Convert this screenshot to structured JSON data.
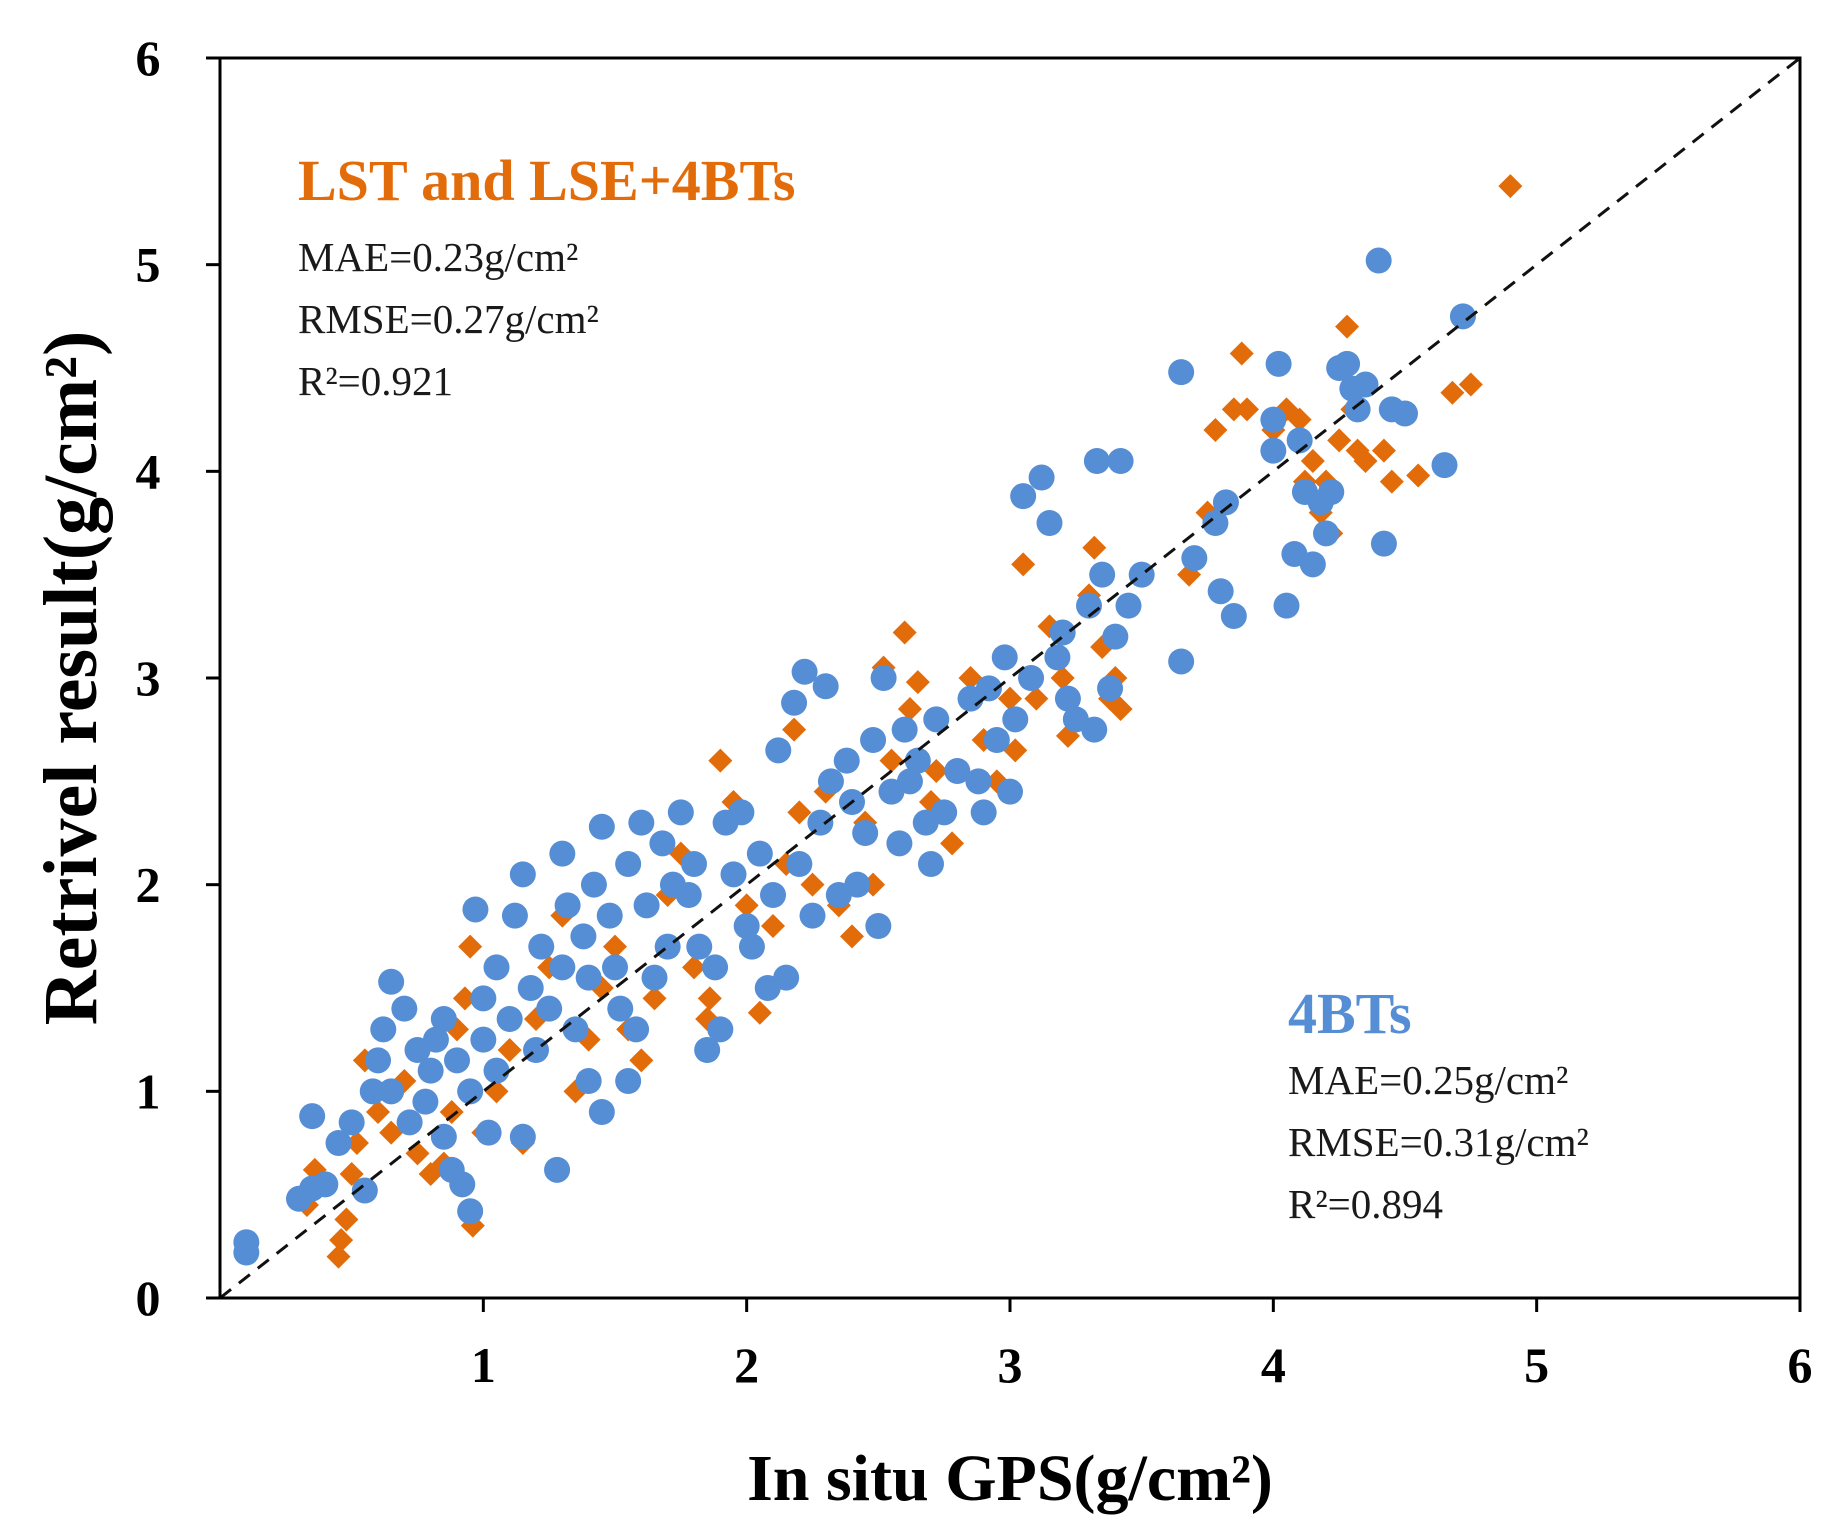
{
  "chart_data": {
    "type": "scatter",
    "xlabel": "In situ GPS(g/cm²)",
    "ylabel": "Retrivel result(g/cm²)",
    "xlim": [
      0,
      6
    ],
    "ylim": [
      0,
      6
    ],
    "xticks": [
      "1",
      "2",
      "3",
      "4",
      "5",
      "6"
    ],
    "yticks": [
      "0",
      "1",
      "2",
      "3",
      "4",
      "5",
      "6"
    ],
    "reference_line": "1:1",
    "colors": {
      "series_a": "#e36c0a",
      "series_b": "#558ed5"
    },
    "series": [
      {
        "name": "LST and LSE+4BTs",
        "marker": "diamond",
        "color": "#e36c0a",
        "stats": {
          "mae": "MAE=0.23g/cm²",
          "rmse": "RMSE=0.27g/cm²",
          "r2": "R²=0.921"
        },
        "points": [
          [
            0.1,
            0.27
          ],
          [
            0.1,
            0.22
          ],
          [
            0.33,
            0.45
          ],
          [
            0.36,
            0.62
          ],
          [
            0.45,
            0.2
          ],
          [
            0.46,
            0.28
          ],
          [
            0.48,
            0.38
          ],
          [
            0.5,
            0.6
          ],
          [
            0.52,
            0.75
          ],
          [
            0.55,
            1.15
          ],
          [
            0.6,
            0.9
          ],
          [
            0.65,
            0.8
          ],
          [
            0.7,
            1.05
          ],
          [
            0.75,
            0.7
          ],
          [
            0.8,
            0.6
          ],
          [
            0.85,
            0.65
          ],
          [
            0.88,
            0.9
          ],
          [
            0.9,
            1.3
          ],
          [
            0.93,
            1.45
          ],
          [
            0.95,
            1.7
          ],
          [
            0.96,
            0.35
          ],
          [
            1.0,
            0.8
          ],
          [
            1.05,
            1.0
          ],
          [
            1.1,
            1.2
          ],
          [
            1.15,
            0.75
          ],
          [
            1.2,
            1.35
          ],
          [
            1.25,
            1.6
          ],
          [
            1.3,
            1.85
          ],
          [
            1.35,
            1.0
          ],
          [
            1.4,
            1.25
          ],
          [
            1.45,
            1.5
          ],
          [
            1.5,
            1.7
          ],
          [
            1.55,
            1.3
          ],
          [
            1.6,
            1.15
          ],
          [
            1.65,
            1.45
          ],
          [
            1.7,
            1.95
          ],
          [
            1.75,
            2.15
          ],
          [
            1.8,
            1.6
          ],
          [
            1.85,
            1.35
          ],
          [
            1.86,
            1.45
          ],
          [
            1.9,
            2.6
          ],
          [
            1.95,
            2.4
          ],
          [
            2.0,
            1.9
          ],
          [
            2.05,
            1.38
          ],
          [
            2.1,
            1.8
          ],
          [
            2.15,
            2.1
          ],
          [
            2.18,
            2.75
          ],
          [
            2.2,
            2.35
          ],
          [
            2.25,
            2.0
          ],
          [
            2.3,
            2.45
          ],
          [
            2.35,
            1.9
          ],
          [
            2.4,
            1.75
          ],
          [
            2.45,
            2.3
          ],
          [
            2.48,
            2.0
          ],
          [
            2.52,
            3.05
          ],
          [
            2.55,
            2.6
          ],
          [
            2.6,
            3.22
          ],
          [
            2.62,
            2.85
          ],
          [
            2.65,
            2.98
          ],
          [
            2.7,
            2.4
          ],
          [
            2.72,
            2.55
          ],
          [
            2.78,
            2.2
          ],
          [
            2.85,
            3.0
          ],
          [
            2.9,
            2.7
          ],
          [
            2.95,
            2.5
          ],
          [
            3.0,
            2.9
          ],
          [
            3.02,
            2.65
          ],
          [
            3.05,
            3.55
          ],
          [
            3.1,
            2.9
          ],
          [
            3.15,
            3.25
          ],
          [
            3.2,
            3.0
          ],
          [
            3.22,
            2.72
          ],
          [
            3.3,
            3.4
          ],
          [
            3.32,
            3.63
          ],
          [
            3.35,
            3.15
          ],
          [
            3.38,
            2.9
          ],
          [
            3.4,
            3.0
          ],
          [
            3.42,
            2.85
          ],
          [
            3.68,
            3.5
          ],
          [
            3.75,
            3.8
          ],
          [
            3.78,
            4.2
          ],
          [
            3.85,
            4.3
          ],
          [
            3.88,
            4.57
          ],
          [
            3.9,
            4.3
          ],
          [
            4.0,
            4.2
          ],
          [
            4.05,
            4.3
          ],
          [
            4.1,
            4.25
          ],
          [
            4.12,
            3.95
          ],
          [
            4.15,
            4.05
          ],
          [
            4.18,
            3.8
          ],
          [
            4.2,
            3.95
          ],
          [
            4.22,
            3.7
          ],
          [
            4.25,
            4.15
          ],
          [
            4.28,
            4.7
          ],
          [
            4.3,
            4.3
          ],
          [
            4.32,
            4.1
          ],
          [
            4.35,
            4.05
          ],
          [
            4.42,
            4.1
          ],
          [
            4.45,
            3.95
          ],
          [
            4.55,
            3.98
          ],
          [
            4.68,
            4.38
          ],
          [
            4.75,
            4.42
          ],
          [
            4.9,
            5.38
          ]
        ]
      },
      {
        "name": "4BTs",
        "marker": "circle",
        "color": "#558ed5",
        "stats": {
          "mae": "MAE=0.25g/cm²",
          "rmse": "RMSE=0.31g/cm²",
          "r2": "R²=0.894"
        },
        "points": [
          [
            0.1,
            0.22
          ],
          [
            0.1,
            0.27
          ],
          [
            0.3,
            0.48
          ],
          [
            0.35,
            0.53
          ],
          [
            0.35,
            0.88
          ],
          [
            0.4,
            0.55
          ],
          [
            0.45,
            0.75
          ],
          [
            0.5,
            0.85
          ],
          [
            0.55,
            0.52
          ],
          [
            0.58,
            1.0
          ],
          [
            0.6,
            1.15
          ],
          [
            0.62,
            1.3
          ],
          [
            0.65,
            1.0
          ],
          [
            0.65,
            1.53
          ],
          [
            0.7,
            1.4
          ],
          [
            0.72,
            0.85
          ],
          [
            0.75,
            1.2
          ],
          [
            0.78,
            0.95
          ],
          [
            0.8,
            1.1
          ],
          [
            0.82,
            1.25
          ],
          [
            0.85,
            1.35
          ],
          [
            0.85,
            0.78
          ],
          [
            0.88,
            0.62
          ],
          [
            0.9,
            1.15
          ],
          [
            0.92,
            0.55
          ],
          [
            0.95,
            0.42
          ],
          [
            0.95,
            1.0
          ],
          [
            0.97,
            1.88
          ],
          [
            1.0,
            1.25
          ],
          [
            1.0,
            1.45
          ],
          [
            1.02,
            0.8
          ],
          [
            1.05,
            1.1
          ],
          [
            1.05,
            1.6
          ],
          [
            1.1,
            1.35
          ],
          [
            1.12,
            1.85
          ],
          [
            1.15,
            2.05
          ],
          [
            1.15,
            0.78
          ],
          [
            1.18,
            1.5
          ],
          [
            1.2,
            1.2
          ],
          [
            1.22,
            1.7
          ],
          [
            1.25,
            1.4
          ],
          [
            1.28,
            0.62
          ],
          [
            1.3,
            1.6
          ],
          [
            1.3,
            2.15
          ],
          [
            1.32,
            1.9
          ],
          [
            1.35,
            1.3
          ],
          [
            1.38,
            1.75
          ],
          [
            1.4,
            1.05
          ],
          [
            1.4,
            1.55
          ],
          [
            1.42,
            2.0
          ],
          [
            1.45,
            0.9
          ],
          [
            1.45,
            2.28
          ],
          [
            1.48,
            1.85
          ],
          [
            1.5,
            1.6
          ],
          [
            1.52,
            1.4
          ],
          [
            1.55,
            2.1
          ],
          [
            1.55,
            1.05
          ],
          [
            1.58,
            1.3
          ],
          [
            1.6,
            2.3
          ],
          [
            1.62,
            1.9
          ],
          [
            1.65,
            1.55
          ],
          [
            1.68,
            2.2
          ],
          [
            1.7,
            1.7
          ],
          [
            1.72,
            2.0
          ],
          [
            1.75,
            2.35
          ],
          [
            1.78,
            1.95
          ],
          [
            1.8,
            2.1
          ],
          [
            1.82,
            1.7
          ],
          [
            1.85,
            1.2
          ],
          [
            1.88,
            1.6
          ],
          [
            1.9,
            1.3
          ],
          [
            1.92,
            2.3
          ],
          [
            1.95,
            2.05
          ],
          [
            1.98,
            2.35
          ],
          [
            2.0,
            1.8
          ],
          [
            2.02,
            1.7
          ],
          [
            2.05,
            2.15
          ],
          [
            2.08,
            1.5
          ],
          [
            2.1,
            1.95
          ],
          [
            2.12,
            2.65
          ],
          [
            2.15,
            1.55
          ],
          [
            2.18,
            2.88
          ],
          [
            2.2,
            2.1
          ],
          [
            2.22,
            3.03
          ],
          [
            2.25,
            1.85
          ],
          [
            2.28,
            2.3
          ],
          [
            2.3,
            2.96
          ],
          [
            2.32,
            2.5
          ],
          [
            2.35,
            1.95
          ],
          [
            2.38,
            2.6
          ],
          [
            2.4,
            2.4
          ],
          [
            2.42,
            2.0
          ],
          [
            2.45,
            2.25
          ],
          [
            2.48,
            2.7
          ],
          [
            2.5,
            1.8
          ],
          [
            2.52,
            3.0
          ],
          [
            2.55,
            2.45
          ],
          [
            2.58,
            2.2
          ],
          [
            2.6,
            2.75
          ],
          [
            2.62,
            2.5
          ],
          [
            2.65,
            2.6
          ],
          [
            2.68,
            2.3
          ],
          [
            2.7,
            2.1
          ],
          [
            2.72,
            2.8
          ],
          [
            2.75,
            2.35
          ],
          [
            2.8,
            2.55
          ],
          [
            2.85,
            2.9
          ],
          [
            2.88,
            2.5
          ],
          [
            2.9,
            2.35
          ],
          [
            2.92,
            2.95
          ],
          [
            2.95,
            2.7
          ],
          [
            2.98,
            3.1
          ],
          [
            3.0,
            2.45
          ],
          [
            3.02,
            2.8
          ],
          [
            3.05,
            3.88
          ],
          [
            3.08,
            3.0
          ],
          [
            3.12,
            3.97
          ],
          [
            3.15,
            3.75
          ],
          [
            3.18,
            3.1
          ],
          [
            3.2,
            3.22
          ],
          [
            3.22,
            2.9
          ],
          [
            3.25,
            2.8
          ],
          [
            3.3,
            3.35
          ],
          [
            3.32,
            2.75
          ],
          [
            3.33,
            4.05
          ],
          [
            3.35,
            3.5
          ],
          [
            3.38,
            2.95
          ],
          [
            3.4,
            3.2
          ],
          [
            3.42,
            4.05
          ],
          [
            3.45,
            3.35
          ],
          [
            3.5,
            3.5
          ],
          [
            3.65,
            3.08
          ],
          [
            3.65,
            4.48
          ],
          [
            3.7,
            3.58
          ],
          [
            3.78,
            3.75
          ],
          [
            3.8,
            3.42
          ],
          [
            3.82,
            3.85
          ],
          [
            3.85,
            3.3
          ],
          [
            4.0,
            4.25
          ],
          [
            4.0,
            4.1
          ],
          [
            4.02,
            4.52
          ],
          [
            4.05,
            3.35
          ],
          [
            4.08,
            3.6
          ],
          [
            4.1,
            4.15
          ],
          [
            4.12,
            3.9
          ],
          [
            4.15,
            3.55
          ],
          [
            4.18,
            3.85
          ],
          [
            4.2,
            3.7
          ],
          [
            4.22,
            3.9
          ],
          [
            4.25,
            4.5
          ],
          [
            4.28,
            4.52
          ],
          [
            4.3,
            4.4
          ],
          [
            4.32,
            4.3
          ],
          [
            4.35,
            4.42
          ],
          [
            4.4,
            5.02
          ],
          [
            4.42,
            3.65
          ],
          [
            4.45,
            4.3
          ],
          [
            4.5,
            4.28
          ],
          [
            4.65,
            4.03
          ],
          [
            4.72,
            4.75
          ]
        ]
      }
    ]
  }
}
